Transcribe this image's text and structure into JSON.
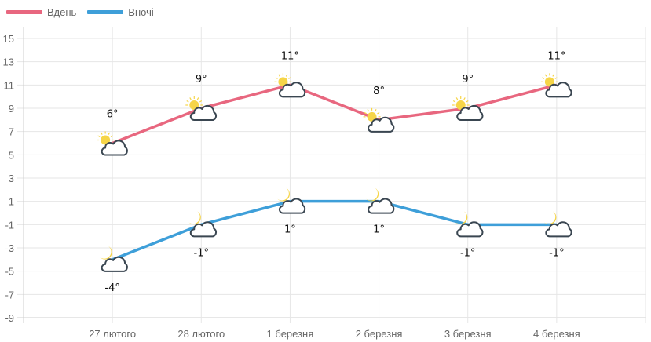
{
  "legend": [
    {
      "label": "Вдень",
      "color": "#e8677f"
    },
    {
      "label": "Вночі",
      "color": "#3e9fd9"
    }
  ],
  "chart_data": {
    "type": "line",
    "title": "",
    "xlabel": "",
    "ylabel": "",
    "categories": [
      "27 лютого",
      "28 лютого",
      "1 березня",
      "2 березня",
      "3 березня",
      "4 березня"
    ],
    "series": [
      {
        "name": "Вдень",
        "color": "#e8677f",
        "values": [
          6,
          9,
          11,
          8,
          9,
          11
        ],
        "labels": [
          "6°",
          "9°",
          "11°",
          "8°",
          "9°",
          "11°"
        ],
        "icon": "sun-cloud-icon",
        "label_position": "above"
      },
      {
        "name": "Вночі",
        "color": "#3e9fd9",
        "values": [
          -4,
          -1,
          1,
          1,
          -1,
          -1
        ],
        "labels": [
          "-4°",
          "-1°",
          "1°",
          "1°",
          "-1°",
          "-1°"
        ],
        "icon": "moon-cloud-icon",
        "label_position": "below"
      }
    ],
    "yticks": [
      15,
      13,
      11,
      9,
      7,
      5,
      3,
      1,
      -1,
      -3,
      -5,
      -7,
      -9
    ],
    "ylim": [
      -9,
      16
    ],
    "grid": true,
    "legend_position": "top-left"
  }
}
